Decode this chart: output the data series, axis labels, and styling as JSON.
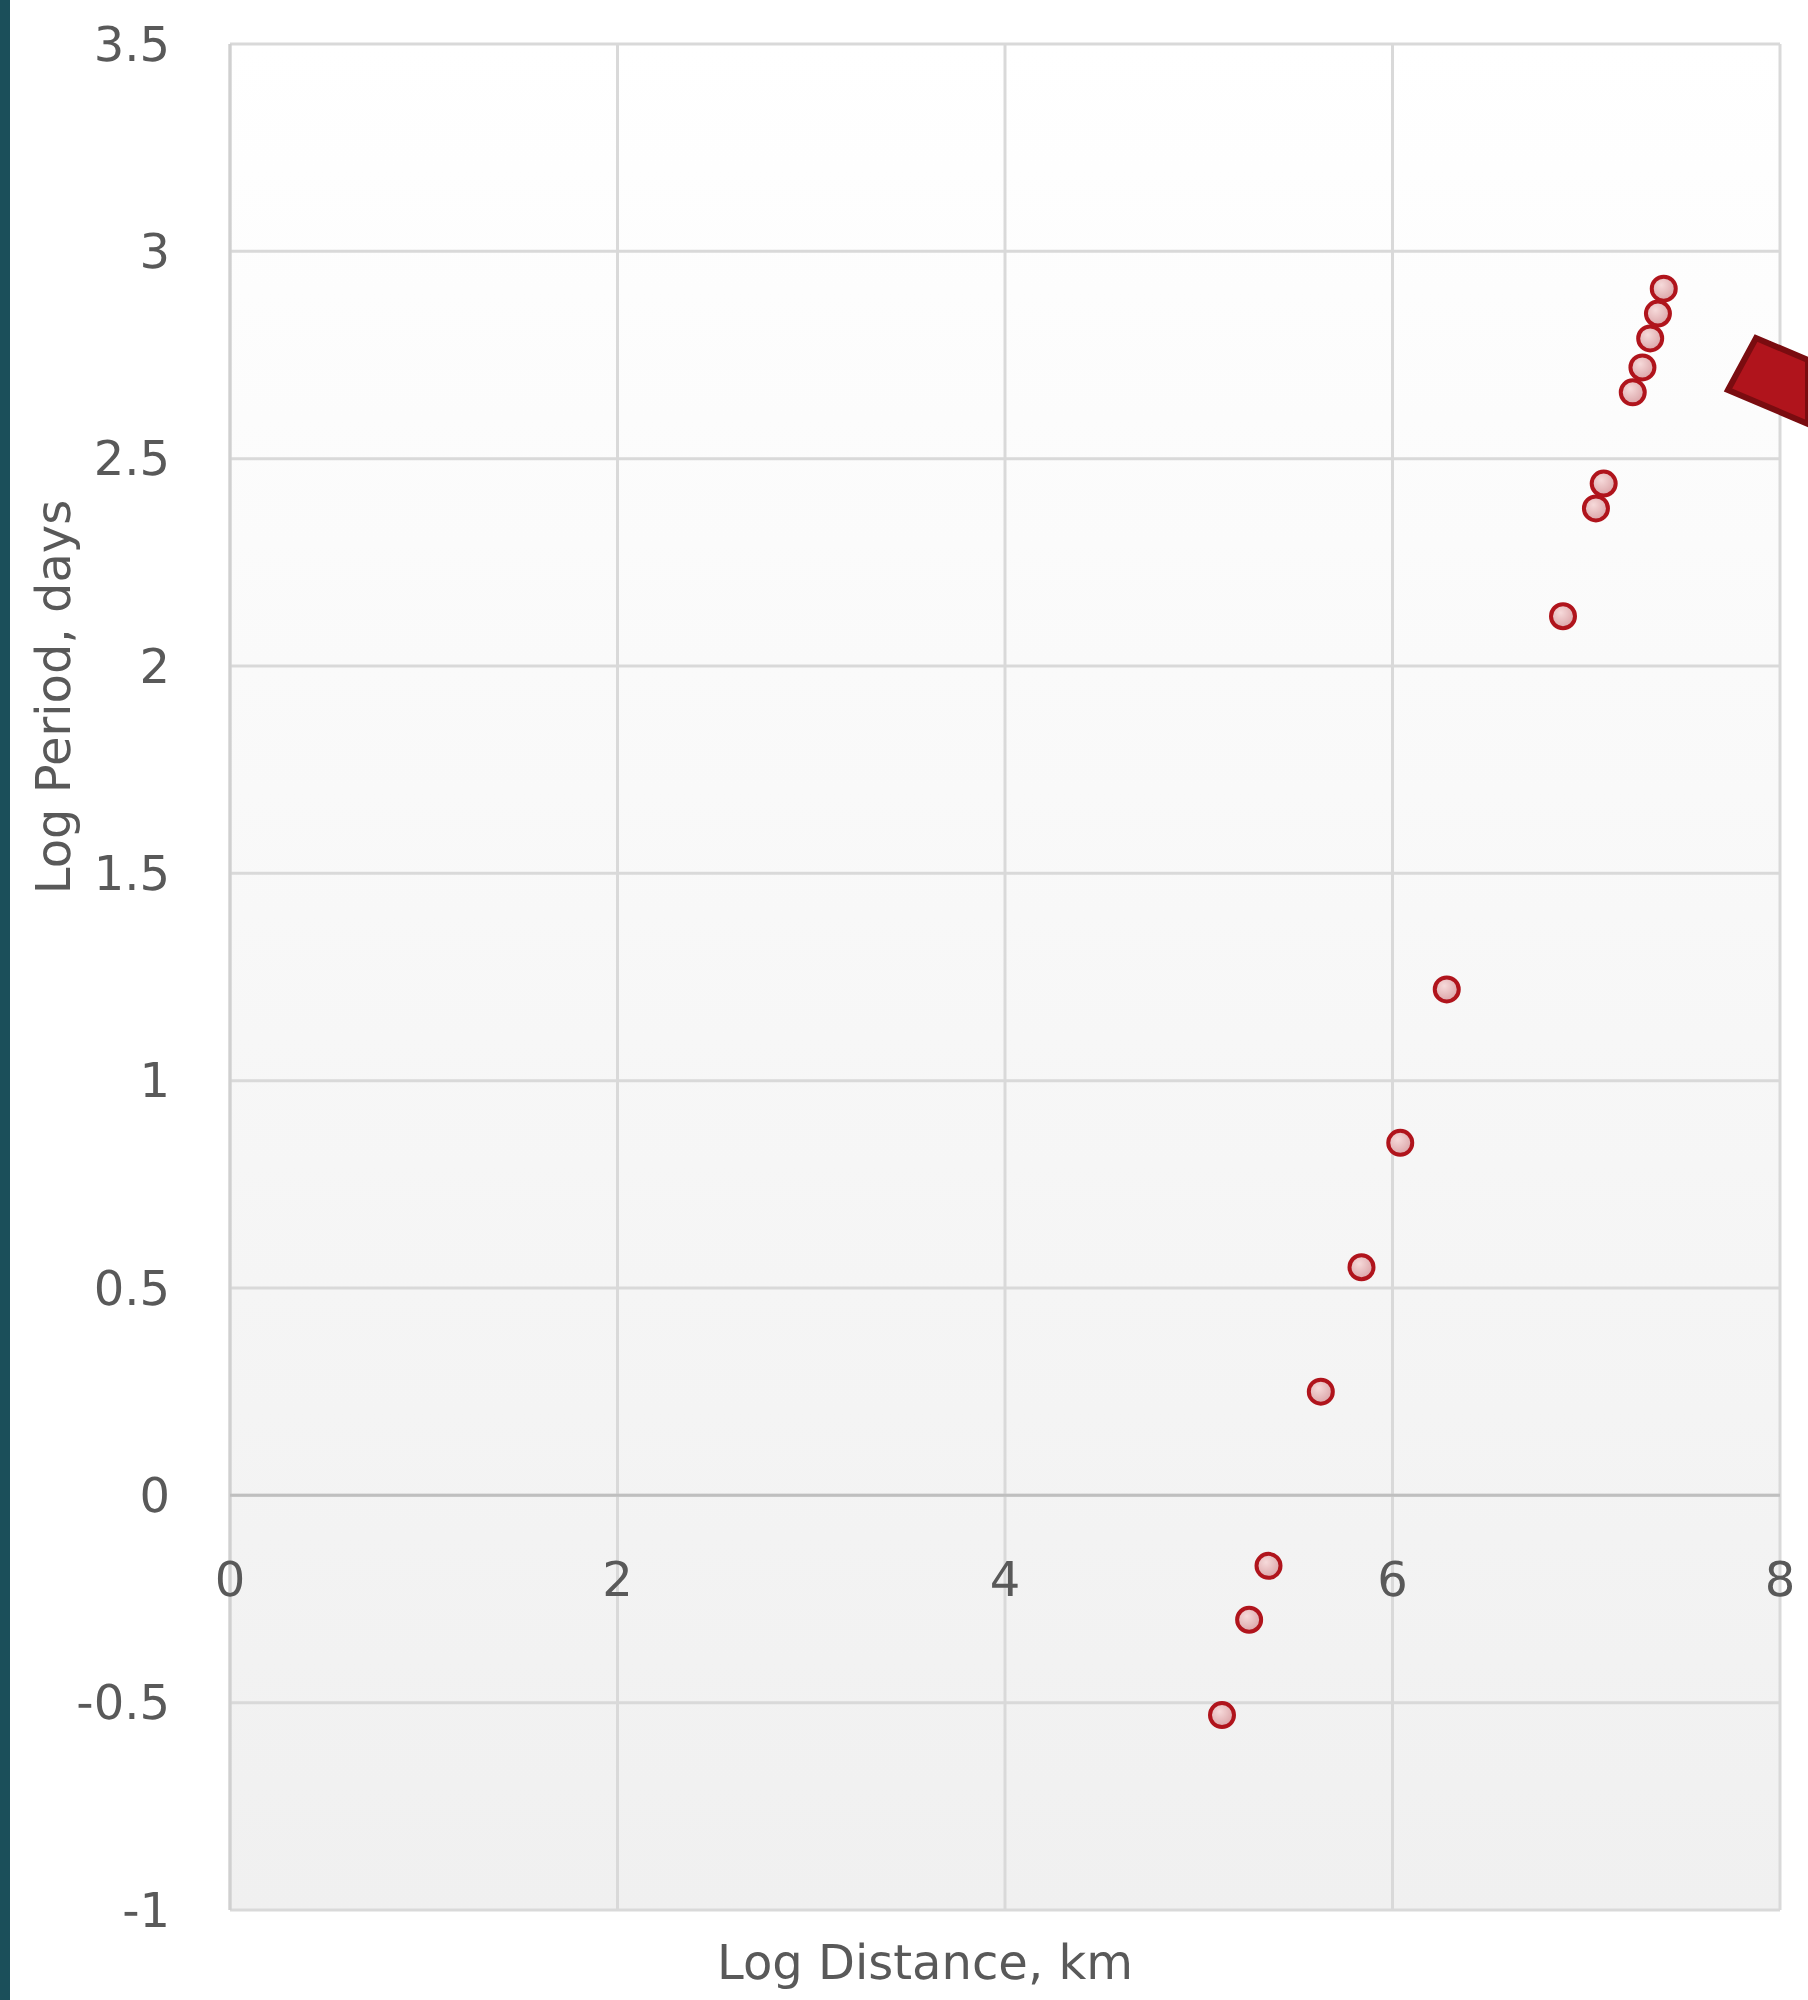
{
  "chart_data": {
    "type": "scatter",
    "xlabel": "Log Distance, km",
    "ylabel": "Log Period, days",
    "x": [
      5.12,
      5.26,
      5.36,
      5.63,
      5.84,
      6.04,
      6.28,
      6.88,
      7.05,
      7.09,
      7.24,
      7.29,
      7.33,
      7.37,
      7.4
    ],
    "series": [
      {
        "color": "#b0141c",
        "values": [
          -0.53,
          -0.3,
          -0.17,
          0.25,
          0.55,
          0.85,
          1.22,
          2.12,
          2.38,
          2.44,
          2.66,
          2.72,
          2.79,
          2.85,
          2.91
        ]
      }
    ],
    "xlim": [
      0,
      8
    ],
    "xticks": [
      0,
      2,
      4,
      6,
      8
    ],
    "ylim": [
      -1,
      3.5
    ],
    "yticks": [
      -1,
      -0.5,
      0,
      0.5,
      1,
      1.5,
      2,
      2.5,
      3,
      3.5
    ],
    "grid": true,
    "marker": "circle"
  }
}
